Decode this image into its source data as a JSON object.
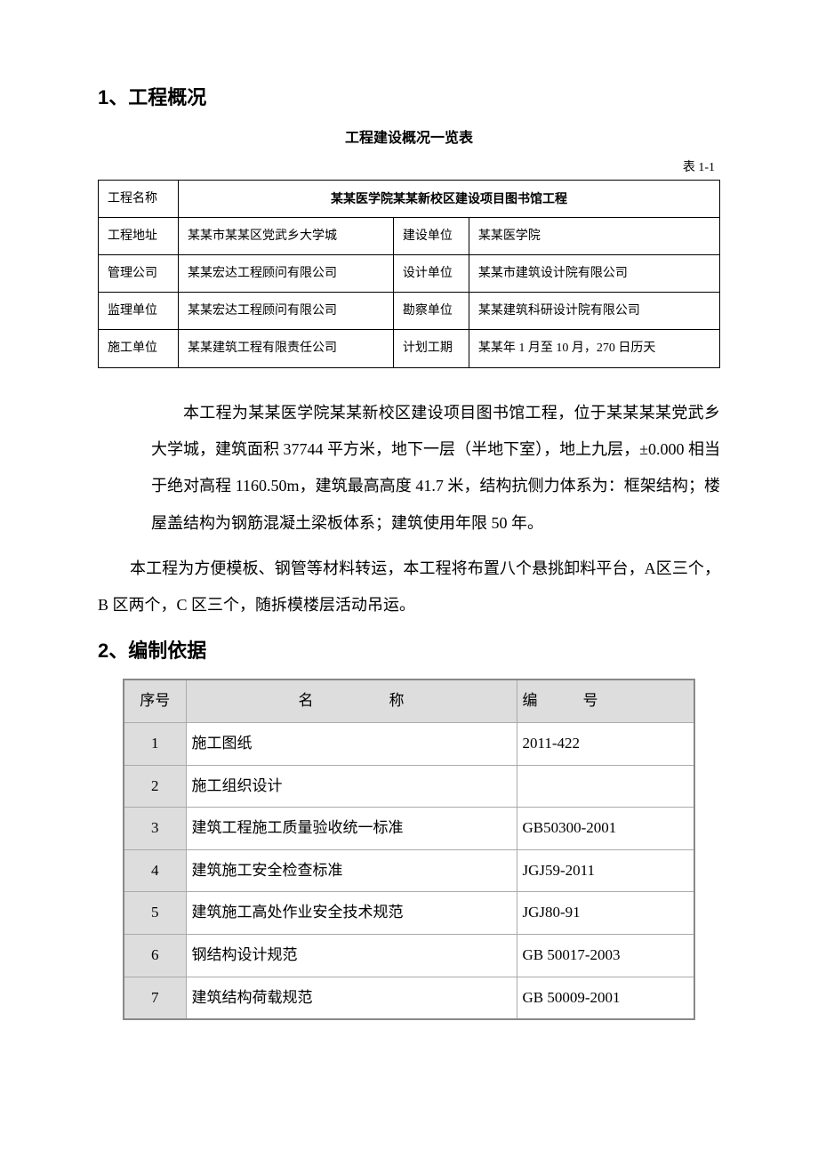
{
  "section1": {
    "heading": "1、工程概况",
    "table_title": "工程建设概况一览表",
    "table_ref": "表 1-1",
    "overview_table": {
      "row1": {
        "label": "工程名称",
        "value": "某某医学院某某新校区建设项目图书馆工程"
      },
      "rows": [
        {
          "l1": "工程地址",
          "v1": "某某市某某区党武乡大学城",
          "l2": "建设单位",
          "v2": "某某医学院",
          "v2_center": true
        },
        {
          "l1": "管理公司",
          "v1": "某某宏达工程顾问有限公司",
          "l2": "设计单位",
          "v2": "某某市建筑设计院有限公司"
        },
        {
          "l1": "监理单位",
          "v1": "某某宏达工程顾问有限公司",
          "l2": "勘察单位",
          "v2": "某某建筑科研设计院有限公司"
        },
        {
          "l1": "施工单位",
          "v1": "某某建筑工程有限责任公司",
          "l2": "计划工期",
          "v2": "某某年 1 月至 10 月，270 日历天"
        }
      ]
    },
    "para1": "本工程为某某医学院某某新校区建设项目图书馆工程，位于某某某某党武乡大学城，建筑面积 37744 平方米，地下一层（半地下室），地上九层，±0.000 相当于绝对高程 1160.50m，建筑最高高度 41.7 米，结构抗侧力体系为：框架结构；楼屋盖结构为钢筋混凝土梁板体系；建筑使用年限 50 年。",
    "para2": "本工程为方便模板、钢管等材料转运，本工程将布置八个悬挑卸料平台，A区三个，B 区两个，C 区三个，随拆模楼层活动吊运。"
  },
  "section2": {
    "heading": "2、编制依据",
    "basis_table": {
      "headers": {
        "seq": "序号",
        "name": "名　　　　　称",
        "code": "编　　　号"
      },
      "rows": [
        {
          "seq": "1",
          "name": "施工图纸",
          "code": "2011-422"
        },
        {
          "seq": "2",
          "name": "施工组织设计",
          "code": ""
        },
        {
          "seq": "3",
          "name": "建筑工程施工质量验收统一标准",
          "code": "GB50300-2001"
        },
        {
          "seq": "4",
          "name": "建筑施工安全检查标准",
          "code": "JGJ59-2011"
        },
        {
          "seq": "5",
          "name": "建筑施工高处作业安全技术规范",
          "code": "JGJ80-91"
        },
        {
          "seq": "6",
          "name": "钢结构设计规范",
          "code": "GB 50017-2003"
        },
        {
          "seq": "7",
          "name": "建筑结构荷载规范",
          "code": "GB 50009-2001"
        }
      ]
    }
  },
  "styling": {
    "page_bg": "#ffffff",
    "text_color": "#000000",
    "border_color_overview": "#000000",
    "border_color_basis": "#aaaaaa",
    "basis_header_bg": "#dddddd",
    "body_fontsize": 18,
    "heading_fontsize": 22,
    "table_fontsize_overview": 14,
    "table_fontsize_basis": 17
  }
}
